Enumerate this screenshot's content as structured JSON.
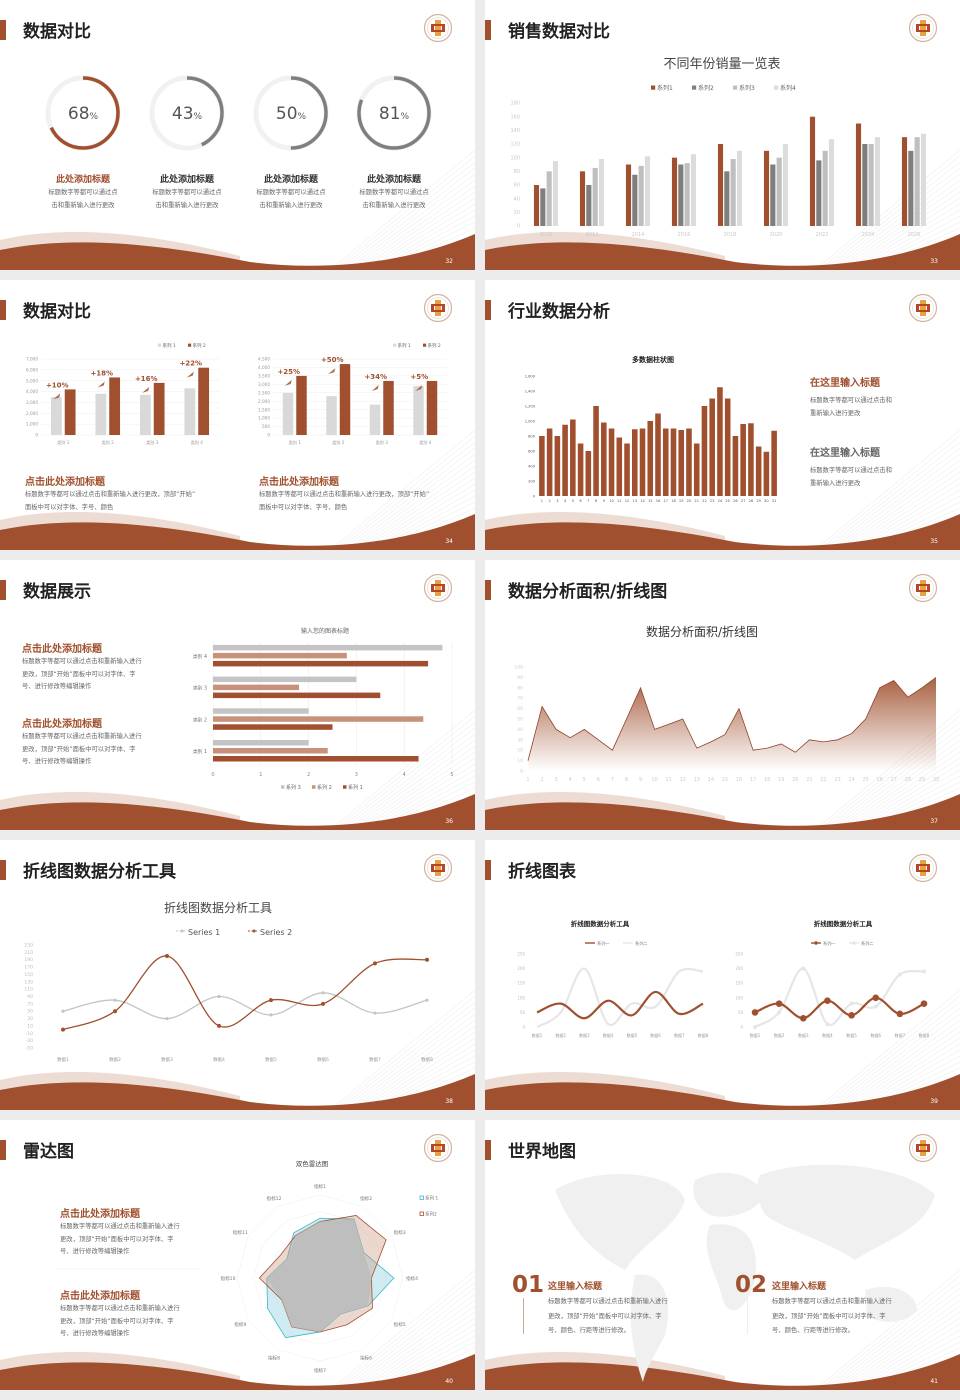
{
  "colors": {
    "accent": "#a0502e",
    "grey": "#7f7f7f",
    "light_grey": "#c4c4c4",
    "lighter_grey": "#dcdcdc",
    "salmon": "#c8917b",
    "cyan": "#3ab7c8"
  },
  "slides": [
    {
      "page": "32",
      "title": "数据对比",
      "items": [
        {
          "heading": "此处添加标题",
          "desc": [
            "标题数字等都可以通过点",
            "击和重新输入进行更改"
          ]
        },
        {
          "heading": "此处添加标题",
          "desc": [
            "标题数字等都可以通过点",
            "击和重新输入进行更改"
          ]
        },
        {
          "heading": "此处添加标题",
          "desc": [
            "标题数字等都可以通过点",
            "击和重新输入进行更改"
          ]
        },
        {
          "heading": "此处添加标题",
          "desc": [
            "标题数字等都可以通过点",
            "击和重新输入进行更改"
          ]
        }
      ]
    },
    {
      "page": "33",
      "title": "销售数据对比"
    },
    {
      "page": "34",
      "title": "数据对比",
      "blocks": [
        {
          "heading": "点击此处添加标题",
          "desc": [
            "标题数字等都可以通过点击和重新输入进行更改，顶部“开始”",
            "面板中可以对字体、字号、颜色"
          ]
        },
        {
          "heading": "点击此处添加标题",
          "desc": [
            "标题数字等都可以通过点击和重新输入进行更改，顶部“开始”",
            "面板中可以对字体、字号、颜色"
          ]
        }
      ]
    },
    {
      "page": "35",
      "title": "行业数据分析",
      "blocks": [
        {
          "heading": "在这里输入标题",
          "desc": [
            "标题数字等都可以通过点击和",
            "重新输入进行更改"
          ]
        },
        {
          "heading": "在这里输入标题",
          "desc": [
            "标题数字等都可以通过点击和",
            "重新输入进行更改"
          ]
        }
      ]
    },
    {
      "page": "36",
      "title": "数据展示",
      "blocks": [
        {
          "heading": "点击此处添加标题",
          "desc": [
            "标题数字等都可以通过点击和重新输入进行",
            "更改，顶部“开始”面板中可以对字体、字",
            "号、进行修改等编辑操作"
          ]
        },
        {
          "heading": "点击此处添加标题",
          "desc": [
            "标题数字等都可以通过点击和重新输入进行",
            "更改，顶部“开始”面板中可以对字体、字",
            "号、进行修改等编辑操作"
          ]
        }
      ]
    },
    {
      "page": "37",
      "title": "数据分析面积/折线图"
    },
    {
      "page": "38",
      "title": "折线图数据分析工具"
    },
    {
      "page": "39",
      "title": "折线图表"
    },
    {
      "page": "40",
      "title": "雷达图",
      "blocks": [
        {
          "heading": "点击此处添加标题",
          "desc": [
            "标题数字等都可以通过点击和重新输入进行",
            "更改，顶部“开始”面板中可以对字体、字",
            "号、进行修改等编辑操作"
          ]
        },
        {
          "heading": "点击此处添加标题",
          "desc": [
            "标题数字等都可以通过点击和重新输入进行",
            "更改，顶部“开始”面板中可以对字体、字",
            "号、进行修改等编辑操作"
          ]
        }
      ]
    },
    {
      "page": "41",
      "title": "世界地图",
      "blocks": [
        {
          "num": "01",
          "heading": "这里输入标题",
          "desc": [
            "标题数字等都可以通过点击和重新输入进行",
            "更改，顶部“开始”面板中可以对字体、字",
            "号、颜色、行距等进行修改。"
          ]
        },
        {
          "num": "02",
          "heading": "这里输入标题",
          "desc": [
            "标题数字等都可以通过点击和重新输入进行",
            "更改，顶部“开始”面板中可以对字体、字",
            "号、颜色、行距等进行修改。"
          ]
        }
      ]
    }
  ],
  "chart_data": [
    {
      "type": "donut",
      "values": [
        68,
        43,
        50,
        81
      ],
      "unit": "%"
    },
    {
      "type": "bar",
      "title": "不同年份销量一览表",
      "categories": [
        "2010",
        "2012",
        "2014",
        "2016",
        "2018",
        "2020",
        "2022",
        "2024",
        "2026"
      ],
      "series": [
        {
          "name": "系列1",
          "values": [
            60,
            80,
            90,
            100,
            120,
            110,
            160,
            150,
            130
          ]
        },
        {
          "name": "系列2",
          "values": [
            55,
            60,
            75,
            90,
            80,
            90,
            96,
            120,
            110
          ]
        },
        {
          "name": "系列3",
          "values": [
            80,
            85,
            88,
            92,
            98,
            100,
            110,
            120,
            130
          ]
        },
        {
          "name": "系列4",
          "values": [
            95,
            98,
            102,
            105,
            110,
            120,
            127,
            130,
            135
          ]
        }
      ],
      "ylim": [
        0,
        180
      ],
      "ytick_step": 20,
      "legend": "top"
    },
    {
      "type": "bar",
      "categories": [
        "类别 1",
        "类别 2",
        "类别 3",
        "类别 4"
      ],
      "series": [
        {
          "name": "系列 1",
          "values": [
            3500,
            3800,
            3700,
            4300
          ]
        },
        {
          "name": "系列 2",
          "values": [
            4200,
            5300,
            4800,
            6200
          ]
        }
      ],
      "annotations": [
        "+10%",
        "+18%",
        "+16%",
        "+22%"
      ],
      "ylim": [
        0,
        7000
      ],
      "ytick_step": 1000,
      "grid": true,
      "legend": "top-right"
    },
    {
      "type": "bar",
      "categories": [
        "类别 1",
        "类别 2",
        "类别 3",
        "类别 4"
      ],
      "series": [
        {
          "name": "系列 1",
          "values": [
            2500,
            2300,
            1800,
            2900
          ]
        },
        {
          "name": "系列 2",
          "values": [
            3500,
            4200,
            3200,
            3200
          ]
        }
      ],
      "annotations": [
        "+25%",
        "+50%",
        "+34%",
        "+5%"
      ],
      "ylim": [
        0,
        4500
      ],
      "ytick_step": 500,
      "grid": true,
      "legend": "top-right"
    },
    {
      "type": "bar",
      "title": "多数据柱状图",
      "categories": [
        "1",
        "2",
        "3",
        "4",
        "5",
        "6",
        "7",
        "8",
        "9",
        "10",
        "11",
        "12",
        "13",
        "14",
        "15",
        "16",
        "17",
        "18",
        "19",
        "20",
        "21",
        "22",
        "23",
        "24",
        "25",
        "26",
        "27",
        "28",
        "29",
        "30",
        "31"
      ],
      "values": [
        800,
        900,
        800,
        950,
        1020,
        700,
        600,
        1200,
        980,
        900,
        780,
        700,
        890,
        900,
        1000,
        1100,
        900,
        900,
        880,
        900,
        700,
        1200,
        1300,
        1450,
        1300,
        800,
        960,
        970,
        660,
        590,
        870
      ],
      "ylim": [
        0,
        1600
      ],
      "ytick_step": 200
    },
    {
      "type": "bar",
      "orientation": "horizontal",
      "title": "输入您的图表标题",
      "categories": [
        "类别 1",
        "类别 2",
        "类别 3",
        "类别 4"
      ],
      "series": [
        {
          "name": "系列 1",
          "values": [
            4.3,
            2.5,
            3.5,
            4.5
          ]
        },
        {
          "name": "系列 2",
          "values": [
            2.4,
            4.4,
            1.8,
            2.8
          ]
        },
        {
          "name": "系列 3",
          "values": [
            2,
            2,
            3,
            4.8
          ]
        }
      ],
      "xlim": [
        0,
        5
      ],
      "xtick_step": 1,
      "legend": "bottom"
    },
    {
      "type": "area",
      "title": "数据分析面积/折线图",
      "x": [
        "1",
        "2",
        "3",
        "4",
        "5",
        "6",
        "7",
        "8",
        "9",
        "10",
        "11",
        "12",
        "13",
        "14",
        "15",
        "16",
        "17",
        "18",
        "19",
        "20",
        "21",
        "22",
        "23",
        "24",
        "25",
        "26",
        "27",
        "28",
        "29",
        "30"
      ],
      "values": [
        10,
        62,
        40,
        32,
        40,
        30,
        20,
        50,
        80,
        40,
        45,
        50,
        22,
        28,
        35,
        60,
        20,
        22,
        26,
        18,
        30,
        28,
        30,
        36,
        50,
        80,
        87,
        71,
        80,
        90
      ],
      "ylim": [
        0,
        100
      ],
      "ytick_step": 10
    },
    {
      "type": "line",
      "title": "折线图数据分析工具",
      "smooth": true,
      "categories": [
        "数据1",
        "数据2",
        "数据3",
        "数据4",
        "数据5",
        "数据6",
        "数据7",
        "数据8"
      ],
      "series": [
        {
          "name": "Series 1",
          "values": [
            50,
            80,
            30,
            90,
            40,
            100,
            45,
            80
          ]
        },
        {
          "name": "Series 2",
          "values": [
            0,
            50,
            200,
            10,
            80,
            70,
            180,
            190
          ]
        }
      ],
      "ylim": [
        -50,
        230
      ],
      "ytick_step": 20,
      "legend": "top"
    },
    {
      "type": "line",
      "title": "折线图数据分析工具",
      "smooth": true,
      "categories": [
        "数据1",
        "数据2",
        "数据3",
        "数据4",
        "数据5",
        "数据6",
        "数据7",
        "数据8"
      ],
      "series": [
        {
          "name": "系列一",
          "values": [
            50,
            80,
            30,
            90,
            40,
            120,
            45,
            80
          ]
        },
        {
          "name": "系列二",
          "values": [
            0,
            50,
            200,
            10,
            80,
            70,
            190,
            190
          ]
        }
      ],
      "ylim": [
        0,
        250
      ],
      "ytick_step": 50,
      "legend": "top"
    },
    {
      "type": "line",
      "title": "折线图数据分析工具",
      "smooth": true,
      "markers": true,
      "categories": [
        "数据1",
        "数据2",
        "数据3",
        "数据4",
        "数据5",
        "数据6",
        "数据7",
        "数据8"
      ],
      "series": [
        {
          "name": "系列一",
          "values": [
            50,
            80,
            30,
            90,
            40,
            100,
            45,
            80
          ]
        },
        {
          "name": "系列二",
          "values": [
            0,
            50,
            200,
            10,
            80,
            70,
            180,
            190
          ]
        }
      ],
      "ylim": [
        0,
        250
      ],
      "ytick_step": 50,
      "legend": "top"
    },
    {
      "type": "radar",
      "title": "双色雷达图",
      "categories": [
        "指标1",
        "指标2",
        "指标3",
        "指标4",
        "指标5",
        "指标6",
        "指标7",
        "指标8",
        "指标9",
        "指标10",
        "指标11",
        "指标12"
      ],
      "series": [
        {
          "name": "系列 1",
          "values": [
            7.2,
            8.2,
            6.1,
            8.9,
            6.7,
            5,
            6.5,
            8.3,
            7.3,
            6.4,
            4.6,
            6.3
          ]
        },
        {
          "name": "系列2",
          "values": [
            6.8,
            8.7,
            9.2,
            6.2,
            7.3,
            6.5,
            6.5,
            6.8,
            5.3,
            7.3,
            5.5,
            5.9
          ]
        }
      ],
      "rmax": 10,
      "legend": "top-right"
    }
  ]
}
